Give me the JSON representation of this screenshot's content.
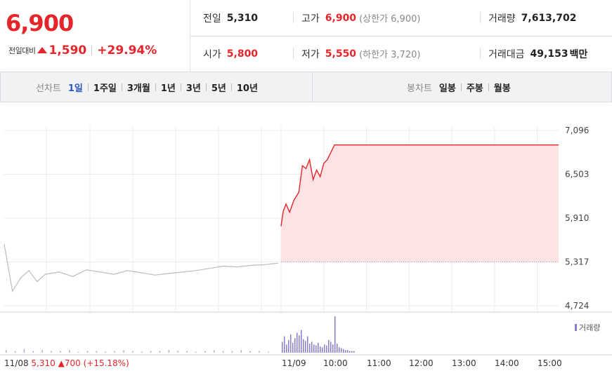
{
  "quote": {
    "price": "6,900",
    "change_label": "전일대비",
    "change_amount": "1,590",
    "change_pct": "+29.94%",
    "prev_close_label": "전일",
    "prev_close": "5,310",
    "high_label": "고가",
    "high": "6,900",
    "upper_limit": "(상한가 6,900)",
    "volume_label": "거래량",
    "volume": "7,613,702",
    "open_label": "시가",
    "open": "5,800",
    "low_label": "저가",
    "low": "5,550",
    "lower_limit": "(하한가 3,720)",
    "trade_value_label": "거래대금",
    "trade_value": "49,153",
    "trade_value_unit": "백만",
    "colors": {
      "up": "#e4262b",
      "active_tab": "#2b56c4",
      "volume": "#8a7cc8"
    }
  },
  "tabs": {
    "line_label": "선차트",
    "line_periods": [
      "1일",
      "1주일",
      "3개월",
      "1년",
      "3년",
      "5년",
      "10년"
    ],
    "active": "1일",
    "candle_label": "봉차트",
    "candle_periods": [
      "일봉",
      "주봉",
      "월봉"
    ]
  },
  "chart_data": {
    "type": "line",
    "y_ticks": [
      "7,096",
      "6,503",
      "5,910",
      "5,317",
      "4,724"
    ],
    "ylim": [
      4724,
      7096
    ],
    "reference_price": 5317,
    "x_ticks": [
      "11/09",
      "10:00",
      "11:00",
      "12:00",
      "13:00",
      "14:00",
      "15:00"
    ],
    "prev_day": {
      "date": "11/08",
      "close": "5,310",
      "change": "700",
      "change_pct": "(+15.18%)",
      "x": [
        0,
        0.03,
        0.06,
        0.09,
        0.12,
        0.15,
        0.2,
        0.25,
        0.3,
        0.35,
        0.4,
        0.45,
        0.5,
        0.55,
        0.6,
        0.65,
        0.7,
        0.75,
        0.8,
        0.85,
        0.9,
        0.95,
        1.0
      ],
      "y": [
        5560,
        4920,
        5100,
        5200,
        5050,
        5150,
        5180,
        5120,
        5210,
        5180,
        5150,
        5200,
        5170,
        5140,
        5160,
        5180,
        5200,
        5230,
        5260,
        5250,
        5270,
        5280,
        5300
      ]
    },
    "today": {
      "date": "11/09",
      "time": [
        "09:00",
        "09:03",
        "09:07",
        "09:12",
        "09:18",
        "09:25",
        "09:30",
        "09:35",
        "09:40",
        "09:45",
        "09:50",
        "09:55",
        "10:00",
        "10:05",
        "10:10",
        "10:15",
        "15:30"
      ],
      "price": [
        5800,
        6000,
        6100,
        5990,
        6150,
        6260,
        6620,
        6580,
        6700,
        6430,
        6560,
        6470,
        6650,
        6700,
        6800,
        6900,
        6900
      ]
    },
    "volume_label": "거래량",
    "volume": {
      "prev_day": [
        3,
        2,
        4,
        2,
        3,
        2,
        2,
        3,
        1,
        2,
        2,
        1,
        2,
        3,
        2,
        1,
        2,
        2,
        3,
        2,
        2,
        1,
        2,
        3,
        2,
        2,
        3,
        2,
        2,
        1
      ],
      "today": [
        12,
        18,
        9,
        14,
        20,
        11,
        16,
        22,
        19,
        25,
        15,
        13,
        18,
        10,
        12,
        9,
        8,
        11,
        7,
        6,
        9,
        8,
        14,
        12,
        9,
        40,
        10,
        6,
        5,
        4,
        3,
        3,
        2,
        2,
        2
      ]
    }
  }
}
